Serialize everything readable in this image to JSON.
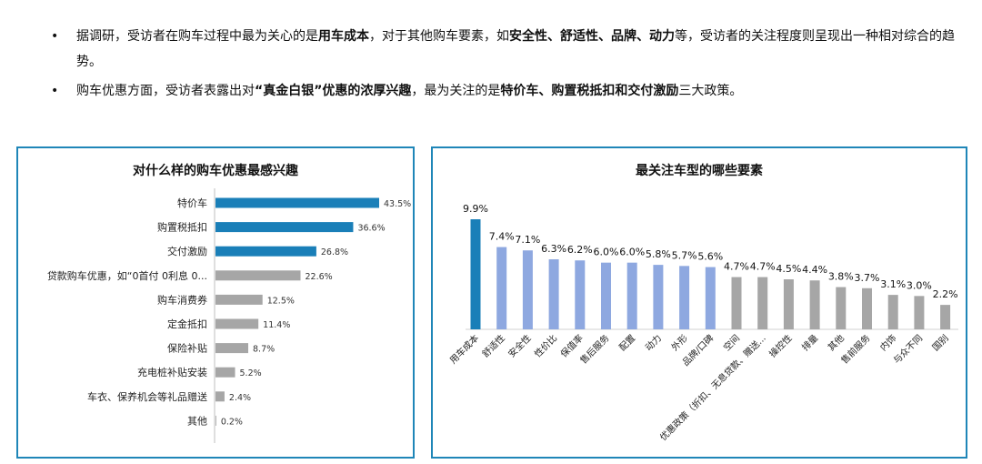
{
  "bullets": [
    {
      "segments": [
        {
          "text": "据调研，受访者在购车过程中最为关心的是",
          "bold": false
        },
        {
          "text": "用车成本",
          "bold": true
        },
        {
          "text": "，对于其他购车要素，如",
          "bold": false
        },
        {
          "text": "安全性、舒适性、品牌、动力",
          "bold": true
        },
        {
          "text": "等，受访者的关注程度则呈现出一种相对综合的趋势。",
          "bold": false
        }
      ]
    },
    {
      "segments": [
        {
          "text": "购车优惠方面，受访者表露出对",
          "bold": false
        },
        {
          "text": "“真金白银”优惠的浓厚兴趣",
          "bold": true
        },
        {
          "text": "，最为关注的是",
          "bold": false
        },
        {
          "text": "特价车、购置税抵扣和交付激励",
          "bold": true
        },
        {
          "text": "三大政策。",
          "bold": false
        }
      ]
    }
  ],
  "colors": {
    "highlight": "#1a7fb8",
    "lightblue": "#8ea8e0",
    "gray": "#a6a6a6",
    "border": "#1f86b8"
  },
  "chart_data": [
    {
      "type": "bar",
      "orientation": "horizontal",
      "title": "对什么样的购车优惠最感兴趣",
      "categories": [
        "特价车",
        "购置税抵扣",
        "交付激励",
        "贷款购车优惠，如“0首付 0利息 0...",
        "购车消费券",
        "定金抵扣",
        "保险补贴",
        "充电桩补贴安装",
        "车衣、保养机会等礼品赠送",
        "其他"
      ],
      "values": [
        43.5,
        36.6,
        26.8,
        22.6,
        12.5,
        11.4,
        8.7,
        5.2,
        2.4,
        0.2
      ],
      "labels": [
        "43.5%",
        "36.6%",
        "26.8%",
        "22.6%",
        "12.5%",
        "11.4%",
        "8.7%",
        "5.2%",
        "2.4%",
        "0.2%"
      ],
      "color_groups": [
        "highlight",
        "highlight",
        "highlight",
        "gray",
        "gray",
        "gray",
        "gray",
        "gray",
        "gray",
        "gray"
      ]
    },
    {
      "type": "bar",
      "orientation": "vertical",
      "title": "最关注车型的哪些要素",
      "categories": [
        "用车成本",
        "舒适性",
        "安全性",
        "性价比",
        "保值率",
        "售后服务",
        "配置",
        "动力",
        "外形",
        "品牌/口碑",
        "空间",
        "优惠政策（折扣、无息贷款、赠送...",
        "操控性",
        "排量",
        "其他",
        "售前服务",
        "内饰",
        "与众不同",
        "国别"
      ],
      "values": [
        9.9,
        7.4,
        7.1,
        6.3,
        6.2,
        6.0,
        6.0,
        5.8,
        5.7,
        5.6,
        4.7,
        4.7,
        4.5,
        4.4,
        3.8,
        3.7,
        3.1,
        3.0,
        2.2
      ],
      "labels": [
        "9.9%",
        "7.4%",
        "7.1%",
        "6.3%",
        "6.2%",
        "6.0%",
        "6.0%",
        "5.8%",
        "5.7%",
        "5.6%",
        "4.7%",
        "4.7%",
        "4.5%",
        "4.4%",
        "3.8%",
        "3.7%",
        "3.1%",
        "3.0%",
        "2.2%"
      ],
      "color_groups": [
        "highlight",
        "lightblue",
        "lightblue",
        "lightblue",
        "lightblue",
        "lightblue",
        "lightblue",
        "lightblue",
        "lightblue",
        "lightblue",
        "gray",
        "gray",
        "gray",
        "gray",
        "gray",
        "gray",
        "gray",
        "gray",
        "gray"
      ]
    }
  ]
}
